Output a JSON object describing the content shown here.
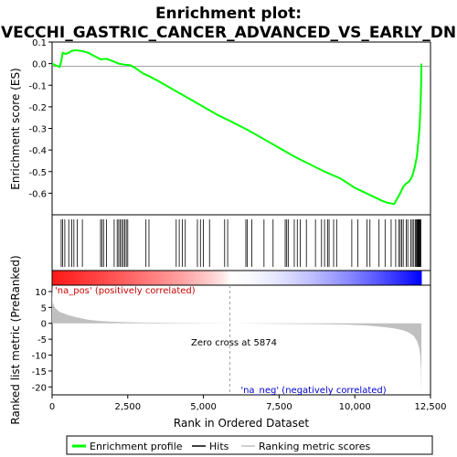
{
  "title_line1": "Enrichment plot:",
  "title_line2": "VECCHI_GASTRIC_CANCER_ADVANCED_VS_EARLY_DN",
  "ylabel_top": "Enrichment score (ES)",
  "ylabel_bottom": "Ranked list metric (PreRanked)",
  "xlabel": "Rank in Ordered Dataset",
  "pos_label": "'na_pos' (positively correlated)",
  "neg_label": "'na_neg' (negatively correlated)",
  "zero_cross_label": "Zero cross at 5874",
  "legend": {
    "enrichment": "Enrichment profile",
    "hits": "Hits",
    "ranking": "Ranking metric scores"
  },
  "colors": {
    "enrichment_line": "#00ff00",
    "hit_line": "#000000",
    "metric_fill": "#c0c0c0",
    "pos_bar": "#ff0000",
    "neg_bar": "#0000ff"
  },
  "chart_data": {
    "type": "line",
    "n_genes": 12200,
    "zero_cross": 5874,
    "es_panel": {
      "ylim": [
        -0.7,
        0.1
      ],
      "yticks": [
        0.1,
        0.0,
        -0.1,
        -0.2,
        -0.3,
        -0.4,
        -0.5,
        -0.6
      ],
      "ytick_labels": [
        "0.1",
        "0.0",
        "-0.1",
        "-0.2",
        "-0.3",
        "-0.4",
        "-0.5",
        "-0.6"
      ],
      "profile": [
        [
          0,
          0.0
        ],
        [
          150,
          -0.01
        ],
        [
          250,
          -0.015
        ],
        [
          300,
          0.01
        ],
        [
          350,
          0.05
        ],
        [
          450,
          0.045
        ],
        [
          550,
          0.05
        ],
        [
          650,
          0.06
        ],
        [
          800,
          0.062
        ],
        [
          1000,
          0.058
        ],
        [
          1200,
          0.05
        ],
        [
          1400,
          0.035
        ],
        [
          1600,
          0.02
        ],
        [
          1800,
          0.022
        ],
        [
          2000,
          0.012
        ],
        [
          2200,
          0.0
        ],
        [
          2400,
          -0.005
        ],
        [
          2600,
          -0.008
        ],
        [
          2800,
          -0.025
        ],
        [
          3000,
          -0.045
        ],
        [
          3200,
          -0.058
        ],
        [
          3500,
          -0.08
        ],
        [
          4000,
          -0.12
        ],
        [
          4500,
          -0.16
        ],
        [
          5000,
          -0.2
        ],
        [
          5500,
          -0.24
        ],
        [
          5874,
          -0.265
        ],
        [
          6500,
          -0.31
        ],
        [
          7000,
          -0.35
        ],
        [
          7500,
          -0.39
        ],
        [
          8000,
          -0.43
        ],
        [
          8500,
          -0.465
        ],
        [
          9000,
          -0.5
        ],
        [
          9500,
          -0.53
        ],
        [
          10000,
          -0.575
        ],
        [
          10300,
          -0.595
        ],
        [
          10600,
          -0.615
        ],
        [
          10900,
          -0.635
        ],
        [
          11100,
          -0.645
        ],
        [
          11300,
          -0.65
        ],
        [
          11400,
          -0.625
        ],
        [
          11500,
          -0.6
        ],
        [
          11600,
          -0.57
        ],
        [
          11700,
          -0.555
        ],
        [
          11800,
          -0.545
        ],
        [
          11900,
          -0.52
        ],
        [
          11980,
          -0.48
        ],
        [
          12050,
          -0.43
        ],
        [
          12100,
          -0.36
        ],
        [
          12140,
          -0.29
        ],
        [
          12170,
          -0.2
        ],
        [
          12190,
          -0.1
        ],
        [
          12200,
          0.0
        ]
      ],
      "hits": [
        300,
        350,
        420,
        550,
        650,
        720,
        830,
        1000,
        1600,
        1650,
        1700,
        1800,
        2050,
        2150,
        2200,
        2250,
        2300,
        2350,
        2400,
        2450,
        2500,
        3100,
        3200,
        4100,
        4200,
        4300,
        4400,
        4800,
        4900,
        5000,
        5200,
        5700,
        5800,
        6400,
        6450,
        6600,
        7000,
        7300,
        7700,
        7750,
        7800,
        8000,
        8100,
        8200,
        8400,
        8700,
        8900,
        9000,
        9100,
        9150,
        9300,
        9400,
        9900,
        10100,
        10400,
        10500,
        10800,
        11000,
        11200,
        11350,
        11450,
        11500,
        11550,
        11600,
        11700,
        11750,
        11850,
        11900,
        11950,
        12000,
        12030,
        12060,
        12080,
        12100,
        12120,
        12140,
        12160,
        12180
      ]
    },
    "metric_panel": {
      "ylim": [
        -22.5,
        12
      ],
      "yticks": [
        10,
        5,
        0,
        -5,
        -10,
        -15,
        -20
      ],
      "ytick_labels": [
        "10",
        "5",
        "0",
        "-5",
        "-10",
        "-15",
        "-20"
      ],
      "profile": [
        [
          0,
          12
        ],
        [
          20,
          6.5
        ],
        [
          100,
          4.8
        ],
        [
          250,
          3.6
        ],
        [
          500,
          2.7
        ],
        [
          800,
          1.9
        ],
        [
          1200,
          1.1
        ],
        [
          1600,
          0.7
        ],
        [
          2000,
          0.5
        ],
        [
          2500,
          0.35
        ],
        [
          3000,
          0.25
        ],
        [
          4000,
          0.15
        ],
        [
          5000,
          0.06
        ],
        [
          5874,
          0.0
        ],
        [
          7000,
          -0.1
        ],
        [
          8000,
          -0.2
        ],
        [
          9000,
          -0.3
        ],
        [
          9800,
          -0.45
        ],
        [
          10400,
          -0.7
        ],
        [
          10900,
          -1.1
        ],
        [
          11300,
          -1.6
        ],
        [
          11600,
          -2.2
        ],
        [
          11800,
          -3.0
        ],
        [
          11950,
          -4.0
        ],
        [
          12050,
          -5.5
        ],
        [
          12120,
          -7.5
        ],
        [
          12160,
          -10.0
        ],
        [
          12185,
          -14.0
        ],
        [
          12200,
          -22.0
        ]
      ]
    },
    "xaxis": {
      "xlim": [
        0,
        12500
      ],
      "ticks": [
        0,
        2500,
        5000,
        7500,
        10000,
        12500
      ],
      "tick_labels": [
        "0",
        "2,500",
        "5,000",
        "7,500",
        "10,000",
        "12,500"
      ]
    }
  }
}
